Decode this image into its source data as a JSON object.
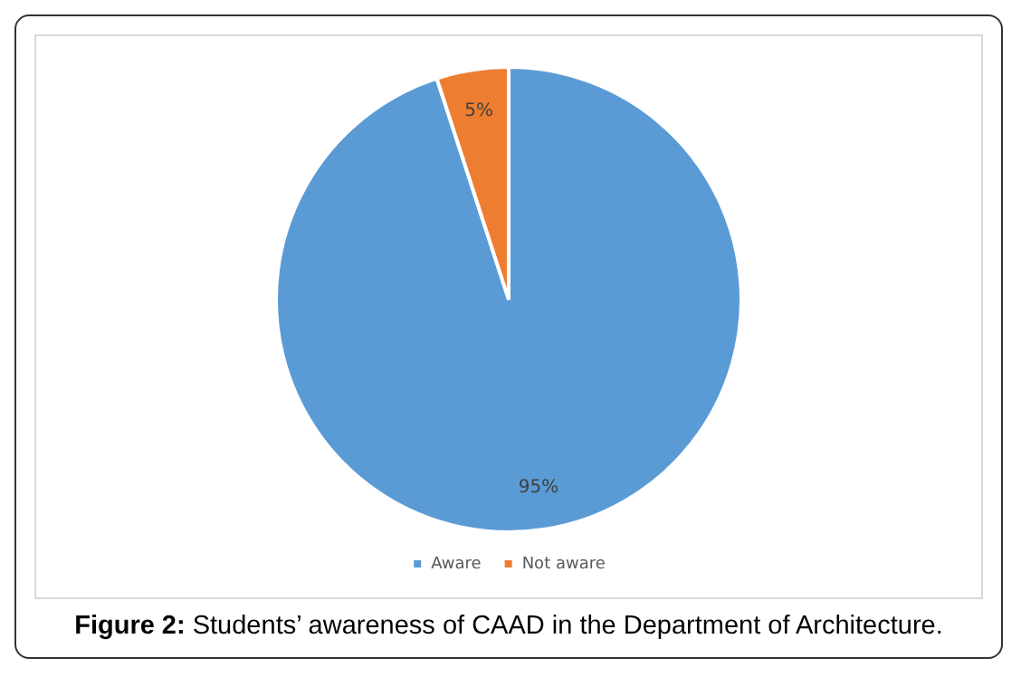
{
  "chart_data": {
    "type": "pie",
    "categories": [
      "Aware",
      "Not aware"
    ],
    "values": [
      95,
      5
    ],
    "colors": [
      "#5b9bd5",
      "#ed7d31"
    ],
    "value_labels": [
      "95%",
      "5%"
    ],
    "legend": "bottom",
    "annotations": [
      "Figure 2: Students’ awareness of CAAD in the Department of Architecture."
    ]
  }
}
